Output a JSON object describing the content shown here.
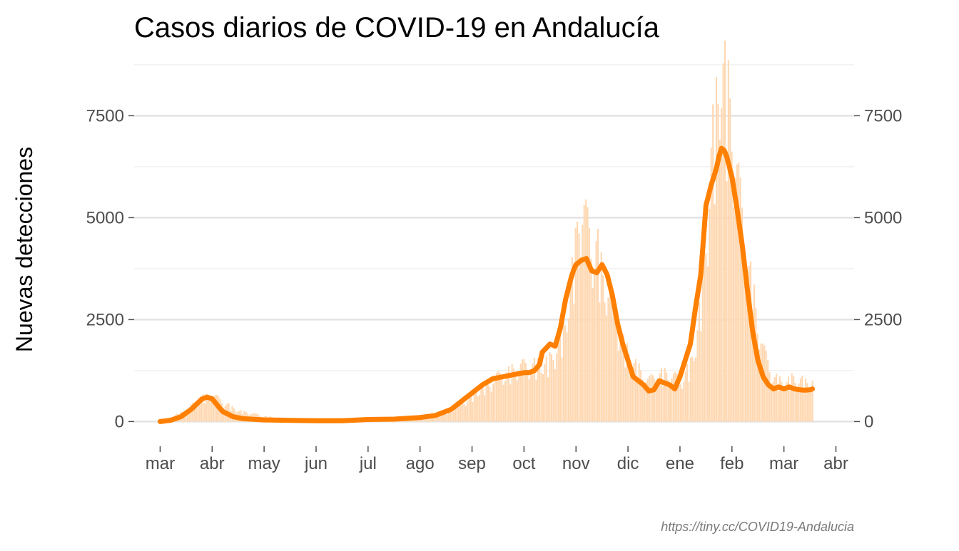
{
  "chart_data": {
    "type": "bar",
    "title": "Casos diarios de COVID-19 en Andalucía",
    "subtitle": "",
    "xlabel": "",
    "ylabel": "Nuevas detecciones",
    "caption": "https://tiny.cc/COVID19-Andalucia",
    "ylim": [
      -500,
      8800
    ],
    "y_ticks": [
      0,
      2500,
      5000,
      7500
    ],
    "y_tick_labels": [
      "0",
      "2500",
      "5000",
      "7500"
    ],
    "y_axis_positions": [
      "left",
      "right"
    ],
    "x_months": [
      "mar",
      "abr",
      "may",
      "jun",
      "jul",
      "ago",
      "sep",
      "oct",
      "nov",
      "dic",
      "ene",
      "feb",
      "mar",
      "abr"
    ],
    "grid": true,
    "legend": "none",
    "bar_color": "#ffd7b0",
    "line_color": "#ff7f00",
    "series": [
      {
        "kind": "bars",
        "comment_points": "approximate daily case peaks as monthly profile",
        "x": [
          0.0,
          0.5,
          0.8,
          1.0,
          1.2,
          1.5,
          2.0,
          2.5,
          3.0,
          3.5,
          4.0,
          4.5,
          5.0,
          5.3,
          5.6,
          5.8,
          6.0,
          6.2,
          6.5,
          6.8,
          7.0,
          7.2,
          7.5,
          7.7,
          7.8,
          7.9,
          8.0,
          8.05,
          8.1,
          8.2,
          8.3,
          8.4,
          8.5,
          8.7,
          8.9,
          9.0,
          9.2,
          9.4,
          9.6,
          9.8,
          10.0,
          10.2,
          10.3,
          10.4,
          10.5,
          10.6,
          10.7,
          10.75,
          10.8,
          10.9,
          11.0,
          11.1,
          11.2,
          11.4,
          11.6,
          11.8,
          12.0,
          12.2,
          12.4,
          12.6
        ],
        "y": [
          0,
          250,
          550,
          600,
          450,
          250,
          120,
          60,
          40,
          30,
          30,
          60,
          100,
          150,
          250,
          400,
          600,
          800,
          1000,
          1200,
          1250,
          1300,
          1400,
          1900,
          2300,
          3200,
          4000,
          4900,
          5000,
          4400,
          3900,
          4100,
          3400,
          2700,
          1800,
          1600,
          1200,
          900,
          1100,
          1100,
          900,
          1300,
          1800,
          2800,
          4200,
          6000,
          7200,
          7600,
          8700,
          7500,
          7000,
          5500,
          4500,
          3000,
          1600,
          1000,
          900,
          1000,
          900,
          950
        ]
      },
      {
        "kind": "line",
        "name": "",
        "x": [
          0.0,
          0.2,
          0.4,
          0.6,
          0.8,
          0.9,
          1.0,
          1.1,
          1.2,
          1.4,
          1.6,
          2.0,
          2.5,
          3.0,
          3.5,
          4.0,
          4.5,
          5.0,
          5.3,
          5.6,
          5.8,
          6.0,
          6.2,
          6.4,
          6.6,
          6.8,
          7.0,
          7.1,
          7.2,
          7.3,
          7.35,
          7.5,
          7.6,
          7.7,
          7.8,
          7.9,
          7.95,
          8.0,
          8.1,
          8.2,
          8.3,
          8.4,
          8.5,
          8.6,
          8.7,
          8.8,
          8.9,
          9.0,
          9.1,
          9.2,
          9.3,
          9.4,
          9.5,
          9.6,
          9.7,
          9.8,
          9.9,
          10.0,
          10.1,
          10.2,
          10.3,
          10.4,
          10.5,
          10.6,
          10.7,
          10.75,
          10.8,
          10.85,
          10.9,
          11.0,
          11.1,
          11.2,
          11.3,
          11.4,
          11.5,
          11.6,
          11.7,
          11.8,
          11.9,
          12.0,
          12.1,
          12.2,
          12.3,
          12.4,
          12.5,
          12.55
        ],
        "y": [
          0,
          30,
          120,
          300,
          550,
          600,
          560,
          400,
          250,
          120,
          70,
          40,
          30,
          20,
          20,
          50,
          60,
          100,
          150,
          300,
          500,
          700,
          900,
          1050,
          1100,
          1150,
          1200,
          1200,
          1250,
          1400,
          1700,
          1900,
          1850,
          2300,
          3000,
          3500,
          3700,
          3850,
          3950,
          4000,
          3700,
          3650,
          3850,
          3600,
          3100,
          2400,
          1900,
          1500,
          1100,
          1000,
          900,
          750,
          780,
          1000,
          950,
          900,
          800,
          1100,
          1500,
          1900,
          2800,
          3600,
          5300,
          5800,
          6200,
          6500,
          6700,
          6650,
          6500,
          6000,
          5200,
          4300,
          3200,
          2200,
          1500,
          1100,
          900,
          800,
          850,
          800,
          850,
          800,
          780,
          770,
          780,
          800
        ]
      }
    ]
  }
}
